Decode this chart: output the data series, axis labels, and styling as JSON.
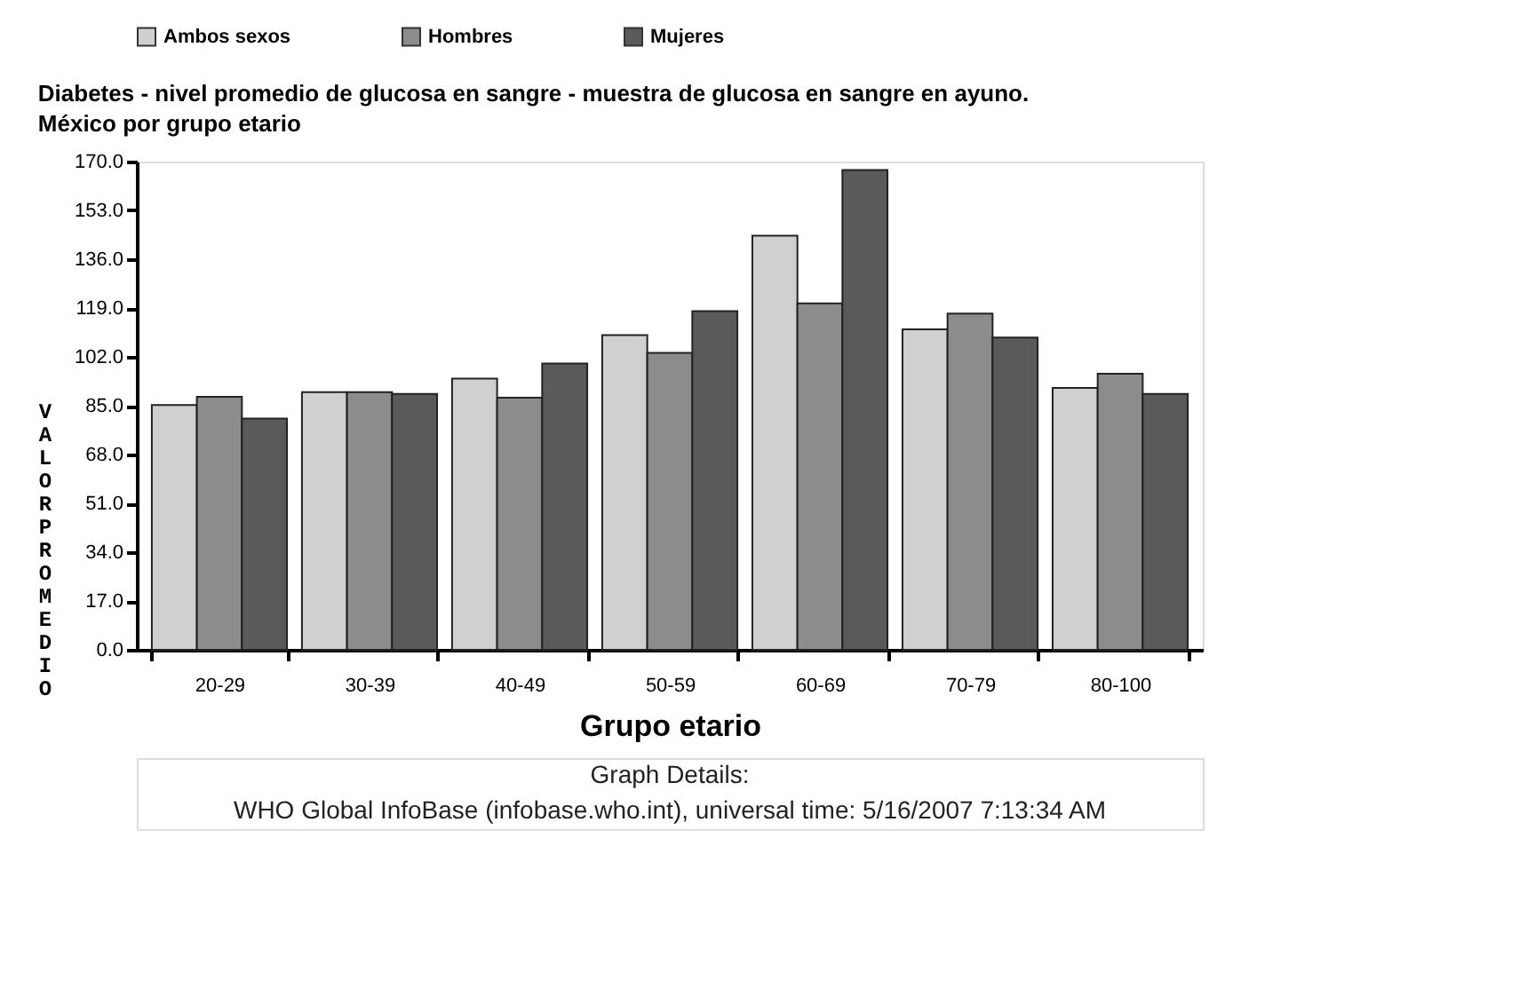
{
  "chart_data": {
    "type": "bar",
    "title": "Diabetes - nivel promedio de glucosa en sangre - muestra de glucosa en sangre en ayuno. México por grupo etario",
    "xlabel": "Grupo etario",
    "ylabel": "VALOR PROMEDIO",
    "categories": [
      "20-29",
      "30-39",
      "40-49",
      "50-59",
      "60-69",
      "70-79",
      "80-100"
    ],
    "series": [
      {
        "name": "Ambos sexos",
        "color": "#d0d0d0",
        "values": [
          85.2,
          89.7,
          94.4,
          109.6,
          144.2,
          111.6,
          91.2
        ]
      },
      {
        "name": "Hombres",
        "color": "#8c8c8c",
        "values": [
          88.1,
          89.7,
          87.8,
          103.4,
          120.6,
          117.1,
          96.1
        ]
      },
      {
        "name": "Mujeres",
        "color": "#5a5a5a",
        "values": [
          80.5,
          89.1,
          99.7,
          117.9,
          167.1,
          108.7,
          89.1
        ]
      }
    ],
    "ylim": [
      0,
      170
    ],
    "yticks": [
      {
        "value": 0,
        "label": "0.0"
      },
      {
        "value": 17,
        "label": "17.0"
      },
      {
        "value": 34,
        "label": "34.0"
      },
      {
        "value": 51,
        "label": "51.0"
      },
      {
        "value": 68,
        "label": "68.0"
      },
      {
        "value": 85,
        "label": "85.0"
      },
      {
        "value": 102,
        "label": "102.0"
      },
      {
        "value": 119,
        "label": "119.0"
      },
      {
        "value": 136,
        "label": "136.0"
      },
      {
        "value": 153,
        "label": "153.0"
      },
      {
        "value": 170,
        "label": "170.0"
      }
    ],
    "grid": false,
    "legend": "top",
    "annotations": [
      "Graph Details:",
      "WHO Global InfoBase (infobase.who.int), universal time: 5/16/2007 7:13:34 AM"
    ]
  }
}
